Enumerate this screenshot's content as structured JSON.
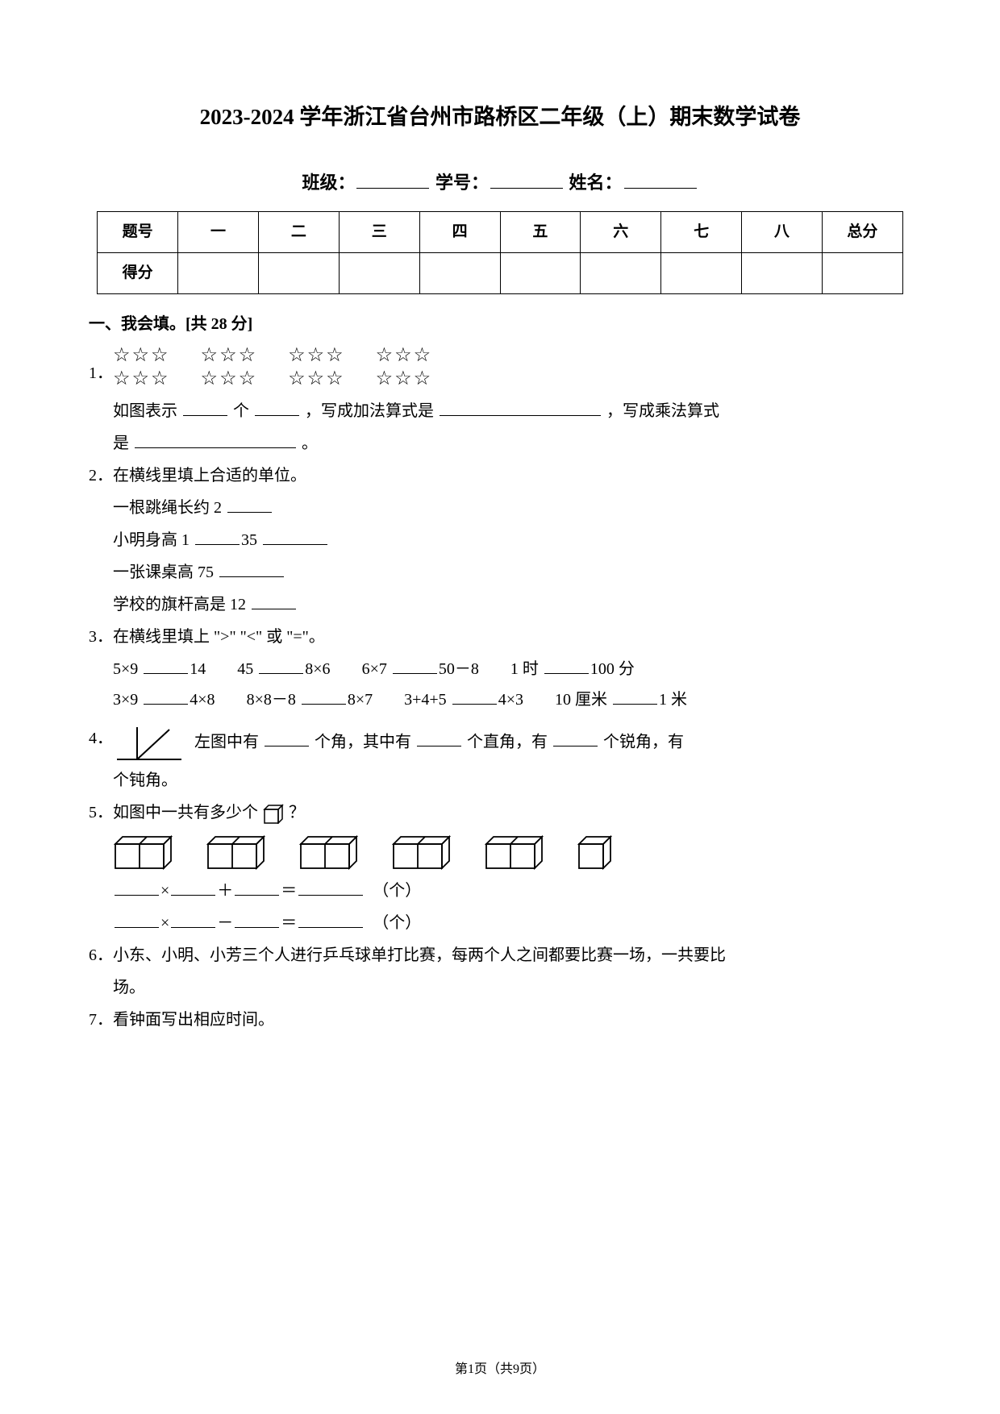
{
  "title": "2023-2024 学年浙江省台州市路桥区二年级（上）期末数学试卷",
  "header": {
    "class_label": "班级：",
    "id_label": "学号：",
    "name_label": "姓名："
  },
  "score_table": {
    "row1": [
      "题号",
      "一",
      "二",
      "三",
      "四",
      "五",
      "六",
      "七",
      "八",
      "总分"
    ],
    "row2_first": "得分"
  },
  "section1": {
    "heading": "一、我会填。[共 28 分]"
  },
  "q1": {
    "num": "1．",
    "star": "☆",
    "text_a": "如图表示",
    "text_b": "个",
    "text_c": "，写成加法算式是",
    "text_d": "，写成乘法算式",
    "text_e": "是",
    "text_f": "。"
  },
  "q2": {
    "num": "2．",
    "heading": "在横线里填上合适的单位。",
    "l1a": "一根跳绳长约 2",
    "l2a": "小明身高 1",
    "l2b": "35",
    "l3a": "一张课桌高 75",
    "l4a": "学校的旗杆高是 12"
  },
  "q3": {
    "num": "3．",
    "heading": "在横线里填上 \">\" \"<\" 或 \"=\"。",
    "r1c1a": "5×9",
    "r1c1b": "14",
    "r1c2a": "45",
    "r1c2b": "8×6",
    "r1c3a": "6×7",
    "r1c3b": "50－8",
    "r1c4a": "1 时",
    "r1c4b": "100 分",
    "r2c1a": "3×9",
    "r2c1b": "4×8",
    "r2c2a": "8×8－8",
    "r2c2b": "8×7",
    "r2c3a": "3+4+5",
    "r2c3b": "4×3",
    "r2c4a": "10 厘米",
    "r2c4b": "1 米"
  },
  "q4": {
    "num": "4．",
    "text_a": "左图中有",
    "text_b": "个角，其中有",
    "text_c": "个直角，有",
    "text_d": "个锐角，有",
    "sub": "个钝角。"
  },
  "q5": {
    "num": "5．",
    "text_a": "如图中一共有多少个",
    "text_b": "？",
    "eq_x": "×",
    "eq_plus": "＋",
    "eq_minus": "－",
    "eq_eq": "＝",
    "eq_unit": "（个）"
  },
  "q6": {
    "num": "6．",
    "text_a": "小东、小明、小芳三个人进行乒乓球单打比赛，每两个人之间都要比赛一场，一共要比",
    "sub": "场。"
  },
  "q7": {
    "num": "7．",
    "text": "看钟面写出相应时间。"
  },
  "footer": "第1页（共9页）",
  "colors": {
    "text": "#000000",
    "bg": "#ffffff"
  }
}
